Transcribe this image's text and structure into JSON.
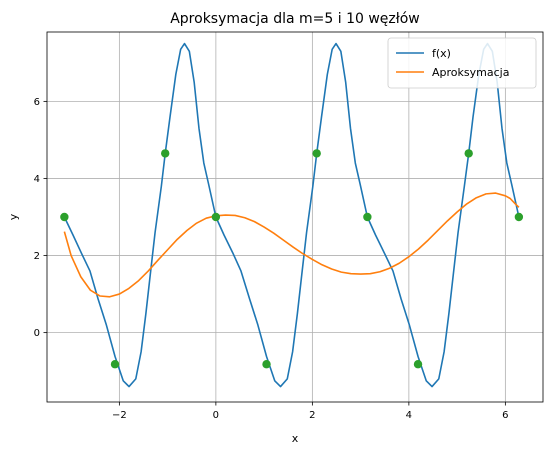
{
  "chart_data": {
    "type": "line",
    "title": "Aproksymacja dla m=5 i 10 węzłów",
    "xlabel": "x",
    "ylabel": "y",
    "xlim": [
      -3.5,
      6.78
    ],
    "ylim": [
      -1.8,
      7.8
    ],
    "xticks": [
      -2,
      0,
      2,
      4,
      6
    ],
    "yticks": [
      0,
      2,
      4,
      6
    ],
    "grid": true,
    "legend": {
      "position": "top-right"
    },
    "series": [
      {
        "name": "f(x)",
        "color": "#1f77b4",
        "points": [
          [
            -3.14,
            3.0
          ],
          [
            -2.96,
            2.53
          ],
          [
            -2.79,
            2.07
          ],
          [
            -2.61,
            1.6
          ],
          [
            -2.44,
            0.87
          ],
          [
            -2.27,
            0.2
          ],
          [
            -2.09,
            -0.62
          ],
          [
            -1.92,
            -1.25
          ],
          [
            -1.8,
            -1.4
          ],
          [
            -1.66,
            -1.2
          ],
          [
            -1.55,
            -0.5
          ],
          [
            -1.45,
            0.5
          ],
          [
            -1.36,
            1.5
          ],
          [
            -1.26,
            2.6
          ],
          [
            -1.13,
            3.8
          ],
          [
            -1.05,
            4.65
          ],
          [
            -0.95,
            5.6
          ],
          [
            -0.83,
            6.7
          ],
          [
            -0.73,
            7.35
          ],
          [
            -0.65,
            7.5
          ],
          [
            -0.55,
            7.3
          ],
          [
            -0.45,
            6.5
          ],
          [
            -0.35,
            5.3
          ],
          [
            -0.25,
            4.4
          ],
          [
            -0.15,
            3.85
          ],
          [
            0.0,
            3.0
          ],
          [
            0.17,
            2.53
          ],
          [
            0.35,
            2.07
          ],
          [
            0.52,
            1.6
          ],
          [
            0.7,
            0.87
          ],
          [
            0.87,
            0.2
          ],
          [
            1.05,
            -0.62
          ],
          [
            1.22,
            -1.25
          ],
          [
            1.34,
            -1.4
          ],
          [
            1.48,
            -1.2
          ],
          [
            1.59,
            -0.5
          ],
          [
            1.69,
            0.5
          ],
          [
            1.78,
            1.5
          ],
          [
            1.88,
            2.6
          ],
          [
            2.01,
            3.8
          ],
          [
            2.09,
            4.65
          ],
          [
            2.19,
            5.6
          ],
          [
            2.31,
            6.7
          ],
          [
            2.41,
            7.35
          ],
          [
            2.49,
            7.5
          ],
          [
            2.59,
            7.3
          ],
          [
            2.69,
            6.5
          ],
          [
            2.79,
            5.3
          ],
          [
            2.89,
            4.4
          ],
          [
            2.99,
            3.85
          ],
          [
            3.14,
            3.0
          ],
          [
            3.31,
            2.53
          ],
          [
            3.49,
            2.07
          ],
          [
            3.67,
            1.6
          ],
          [
            3.84,
            0.87
          ],
          [
            4.01,
            0.2
          ],
          [
            4.19,
            -0.62
          ],
          [
            4.36,
            -1.25
          ],
          [
            4.48,
            -1.4
          ],
          [
            4.62,
            -1.2
          ],
          [
            4.73,
            -0.5
          ],
          [
            4.83,
            0.5
          ],
          [
            4.92,
            1.5
          ],
          [
            5.02,
            2.6
          ],
          [
            5.15,
            3.8
          ],
          [
            5.24,
            4.65
          ],
          [
            5.33,
            5.6
          ],
          [
            5.45,
            6.7
          ],
          [
            5.55,
            7.35
          ],
          [
            5.63,
            7.5
          ],
          [
            5.73,
            7.3
          ],
          [
            5.83,
            6.5
          ],
          [
            5.93,
            5.3
          ],
          [
            6.03,
            4.4
          ],
          [
            6.13,
            3.85
          ],
          [
            6.28,
            3.0
          ]
        ]
      },
      {
        "name": "Aproksymacja",
        "color": "#ff7f0e",
        "points": [
          [
            -3.14,
            2.62
          ],
          [
            -3.0,
            2.0
          ],
          [
            -2.8,
            1.45
          ],
          [
            -2.6,
            1.1
          ],
          [
            -2.4,
            0.95
          ],
          [
            -2.2,
            0.93
          ],
          [
            -2.0,
            1.0
          ],
          [
            -1.8,
            1.15
          ],
          [
            -1.6,
            1.35
          ],
          [
            -1.4,
            1.6
          ],
          [
            -1.2,
            1.88
          ],
          [
            -1.0,
            2.15
          ],
          [
            -0.8,
            2.42
          ],
          [
            -0.6,
            2.65
          ],
          [
            -0.4,
            2.84
          ],
          [
            -0.2,
            2.97
          ],
          [
            0.0,
            3.03
          ],
          [
            0.2,
            3.05
          ],
          [
            0.4,
            3.04
          ],
          [
            0.6,
            2.98
          ],
          [
            0.8,
            2.88
          ],
          [
            1.0,
            2.74
          ],
          [
            1.2,
            2.58
          ],
          [
            1.4,
            2.4
          ],
          [
            1.6,
            2.22
          ],
          [
            1.8,
            2.05
          ],
          [
            2.0,
            1.9
          ],
          [
            2.2,
            1.76
          ],
          [
            2.4,
            1.65
          ],
          [
            2.6,
            1.57
          ],
          [
            2.8,
            1.53
          ],
          [
            3.0,
            1.52
          ],
          [
            3.2,
            1.53
          ],
          [
            3.4,
            1.58
          ],
          [
            3.6,
            1.67
          ],
          [
            3.8,
            1.8
          ],
          [
            4.0,
            1.97
          ],
          [
            4.2,
            2.17
          ],
          [
            4.4,
            2.4
          ],
          [
            4.6,
            2.65
          ],
          [
            4.8,
            2.9
          ],
          [
            5.0,
            3.13
          ],
          [
            5.2,
            3.34
          ],
          [
            5.4,
            3.5
          ],
          [
            5.6,
            3.6
          ],
          [
            5.8,
            3.62
          ],
          [
            6.0,
            3.55
          ],
          [
            6.1,
            3.48
          ],
          [
            6.2,
            3.35
          ],
          [
            6.28,
            3.25
          ]
        ]
      },
      {
        "name": "",
        "color": "#2ca02c",
        "marker": "o",
        "points": [
          [
            -3.14,
            3.0
          ],
          [
            -2.09,
            -0.82
          ],
          [
            -1.05,
            4.65
          ],
          [
            0.0,
            3.0
          ],
          [
            1.05,
            -0.82
          ],
          [
            2.09,
            4.65
          ],
          [
            3.14,
            3.0
          ],
          [
            4.19,
            -0.82
          ],
          [
            5.24,
            4.65
          ],
          [
            6.28,
            3.0
          ]
        ]
      }
    ]
  }
}
